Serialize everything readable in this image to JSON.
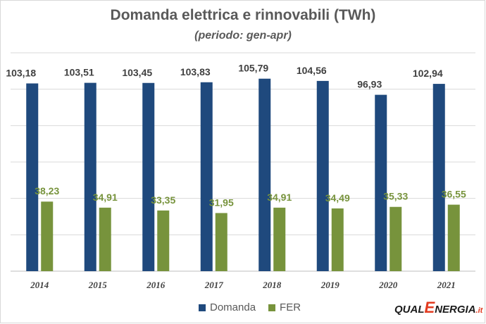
{
  "chart_data": {
    "type": "bar",
    "title": "Domanda elettrica e rinnovabili (TWh)",
    "subtitle": "(periodo: gen-apr)",
    "categories": [
      "2014",
      "2015",
      "2016",
      "2017",
      "2018",
      "2019",
      "2020",
      "2021"
    ],
    "series": [
      {
        "name": "Domanda",
        "values": [
          103.18,
          103.51,
          103.45,
          103.83,
          105.79,
          104.56,
          96.93,
          102.94
        ],
        "labels": [
          "103,18",
          "103,51",
          "103,45",
          "103,83",
          "105,79",
          "104,56",
          "96,93",
          "102,94"
        ],
        "color": "#1f497d"
      },
      {
        "name": "FER",
        "values": [
          38.23,
          34.91,
          33.35,
          31.95,
          34.91,
          34.49,
          35.33,
          36.55
        ],
        "labels": [
          "38,23",
          "34,91",
          "33,35",
          "31,95",
          "34,91",
          "34,49",
          "35,33",
          "36,55"
        ],
        "color": "#77933c"
      }
    ],
    "ylim": [
      0,
      120
    ],
    "grid": true,
    "legend": "bottom"
  },
  "logo": {
    "part1": "QUAL",
    "part2": "E",
    "part3": "NERGIA",
    "part4": ".it"
  },
  "colors": {
    "gridline": "#d9d9d9",
    "axis": "#bfbfbf"
  }
}
